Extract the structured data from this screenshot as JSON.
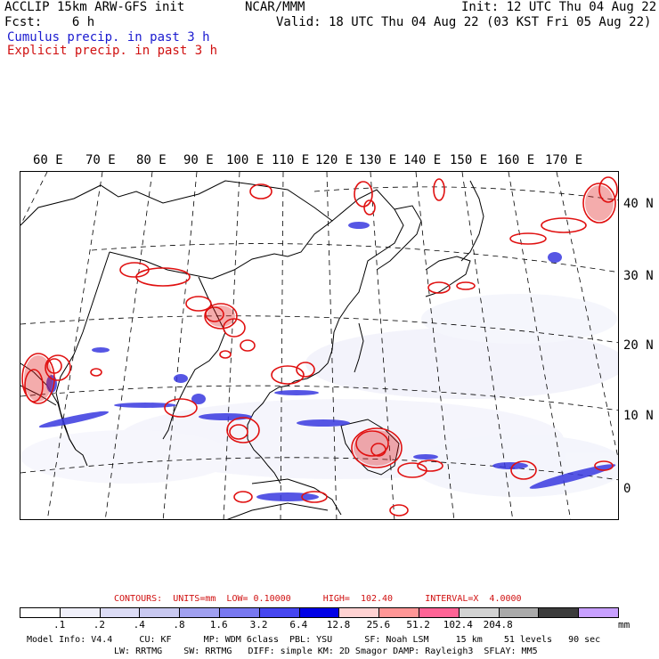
{
  "header": {
    "left_line1": "ACCLIP 15km ARW-GFS init",
    "left_line2": "Fcst:    6 h",
    "center": "NCAR/MMM",
    "right_line1": "Init: 12 UTC Thu 04 Aug 22",
    "right_line2": "Valid: 18 UTC Thu 04 Aug 22 (03 KST Fri 05 Aug 22)",
    "legend_cumulus": "Cumulus precip. in past 3 h",
    "legend_explicit": "Explicit precip. in past 3 h"
  },
  "map": {
    "lon_labels": [
      "60 E",
      "70 E",
      "80 E",
      "90 E",
      "100 E",
      "110 E",
      "120 E",
      "130 E",
      "140 E",
      "150 E",
      "160 E",
      "170 E"
    ],
    "lat_labels": [
      "40 N",
      "30 N",
      "20 N",
      "10 N",
      "0"
    ],
    "colors": {
      "cumulus": "#3030e0",
      "explicit": "#e01010",
      "coast": "#000000",
      "grid": "#000000"
    }
  },
  "contours_line": "CONTOURS:  UNITS=mm  LOW= 0.10000      HIGH=  102.40      INTERVAL=X  4.0000",
  "colorbar": {
    "colors": [
      "#ffffff",
      "#f0f0fa",
      "#dcdcf5",
      "#c8c8f0",
      "#a0a0f0",
      "#7878f0",
      "#4646f0",
      "#0000e6",
      "#ffd2d2",
      "#ff9696",
      "#ff6496",
      "#d2d2d2",
      "#aaaaaa",
      "#3c3c3c",
      "#c8a0ff"
    ],
    "labels": [
      ".1",
      ".2",
      ".4",
      ".8",
      "1.6",
      "3.2",
      "6.4",
      "12.8",
      "25.6",
      "51.2",
      "102.4",
      "204.8"
    ],
    "units": "mm"
  },
  "footer": {
    "line1": "Model Info: V4.4     CU: KF      MP: WDM 6class  PBL: YSU      SF: Noah LSM     15 km    51 levels   90 sec",
    "line2": "LW: RRTMG    SW: RRTMG   DIFF: simple KM: 2D Smagor DAMP: Rayleigh3  SFLAY: MM5"
  }
}
